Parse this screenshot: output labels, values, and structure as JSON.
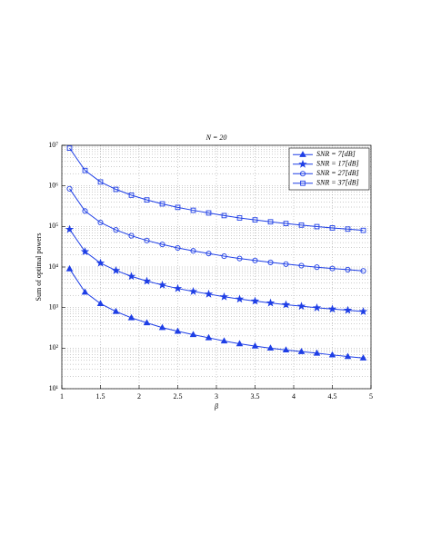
{
  "chart_data": {
    "type": "line",
    "title": "N = 20",
    "x_label": "β",
    "y_label": "Sum of optimal powers",
    "x": [
      1.1,
      1.3,
      1.5,
      1.7,
      1.9,
      2.1,
      2.3,
      2.5,
      2.7,
      2.9,
      3.1,
      3.3,
      3.5,
      3.7,
      3.9,
      4.1,
      4.3,
      4.5,
      4.7,
      4.9
    ],
    "xlim": [
      1,
      5
    ],
    "xticks": [
      1,
      1.5,
      2,
      2.5,
      3,
      3.5,
      4,
      4.5,
      5
    ],
    "ylim": [
      10,
      10000000
    ],
    "y_scale": "log",
    "yticks": [
      {
        "value": 10,
        "label": "10¹"
      },
      {
        "value": 100,
        "label": "10²"
      },
      {
        "value": 1000,
        "label": "10³"
      },
      {
        "value": 10000,
        "label": "10⁴"
      },
      {
        "value": 100000,
        "label": "10⁵"
      },
      {
        "value": 1000000,
        "label": "10⁶"
      },
      {
        "value": 10000000,
        "label": "10⁷"
      }
    ],
    "grid": true,
    "legend_position": "upper right",
    "series": [
      {
        "name": "SNR = 7[dB]",
        "color": "#1f3fe6",
        "marker": "triangle",
        "values": [
          9000,
          2400,
          1250,
          800,
          560,
          420,
          320,
          260,
          215,
          180,
          150,
          128,
          112,
          100,
          90,
          82,
          75,
          68,
          62,
          57
        ]
      },
      {
        "name": "SNR = 17[dB]",
        "color": "#1f3fe6",
        "marker": "star",
        "values": [
          85000,
          24000,
          12500,
          8200,
          5900,
          4500,
          3600,
          2950,
          2500,
          2150,
          1850,
          1620,
          1450,
          1300,
          1180,
          1080,
          990,
          920,
          860,
          800
        ]
      },
      {
        "name": "SNR = 27[dB]",
        "color": "#1f3fe6",
        "marker": "circle",
        "values": [
          850000,
          240000,
          125000,
          82000,
          59000,
          45000,
          36000,
          29500,
          25000,
          21500,
          18500,
          16200,
          14500,
          13000,
          11800,
          10800,
          9900,
          9200,
          8600,
          8000
        ]
      },
      {
        "name": "SNR = 37[dB]",
        "color": "#1f3fe6",
        "marker": "square",
        "values": [
          8500000,
          2400000,
          1250000,
          820000,
          590000,
          450000,
          360000,
          295000,
          250000,
          215000,
          185000,
          162000,
          145000,
          130000,
          118000,
          108000,
          99000,
          92000,
          86000,
          80000
        ]
      }
    ]
  }
}
